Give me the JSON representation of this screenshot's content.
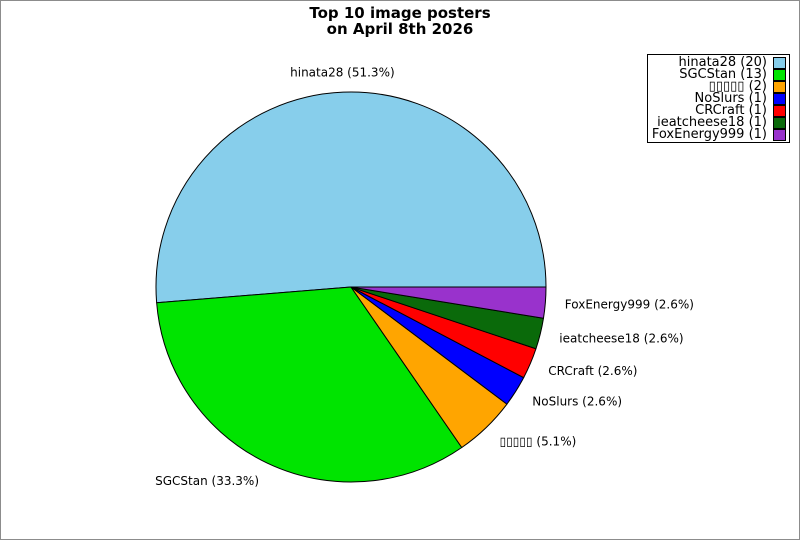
{
  "title": {
    "line1": "Top 10 image posters",
    "line2": "on April 8th 2026"
  },
  "chart_data": {
    "type": "pie",
    "title": "Top 10 image posters on April 8th 2026",
    "legend_position": "upper right",
    "start_angle_deg": 0,
    "direction": "counterclockwise",
    "slice_label_format": "{name} ({percent}%)",
    "legend_label_format": "{name} ({count})",
    "slices": [
      {
        "name": "hinata28",
        "count": 20,
        "percent": "51.3",
        "color": "#87CEEB"
      },
      {
        "name": "SGCStan",
        "count": 13,
        "percent": "33.3",
        "color": "#00E400"
      },
      {
        "name": "▯▯▯▯▯",
        "count": 2,
        "percent": "5.1",
        "color": "#FFA500"
      },
      {
        "name": "NoSlurs",
        "count": 1,
        "percent": "2.6",
        "color": "#0000FF"
      },
      {
        "name": "CRCraft",
        "count": 1,
        "percent": "2.6",
        "color": "#FF0000"
      },
      {
        "name": "ieatcheese18",
        "count": 1,
        "percent": "2.6",
        "color": "#0A6A0A"
      },
      {
        "name": "FoxEnergy999",
        "count": 1,
        "percent": "2.6",
        "color": "#9932CC"
      }
    ]
  }
}
